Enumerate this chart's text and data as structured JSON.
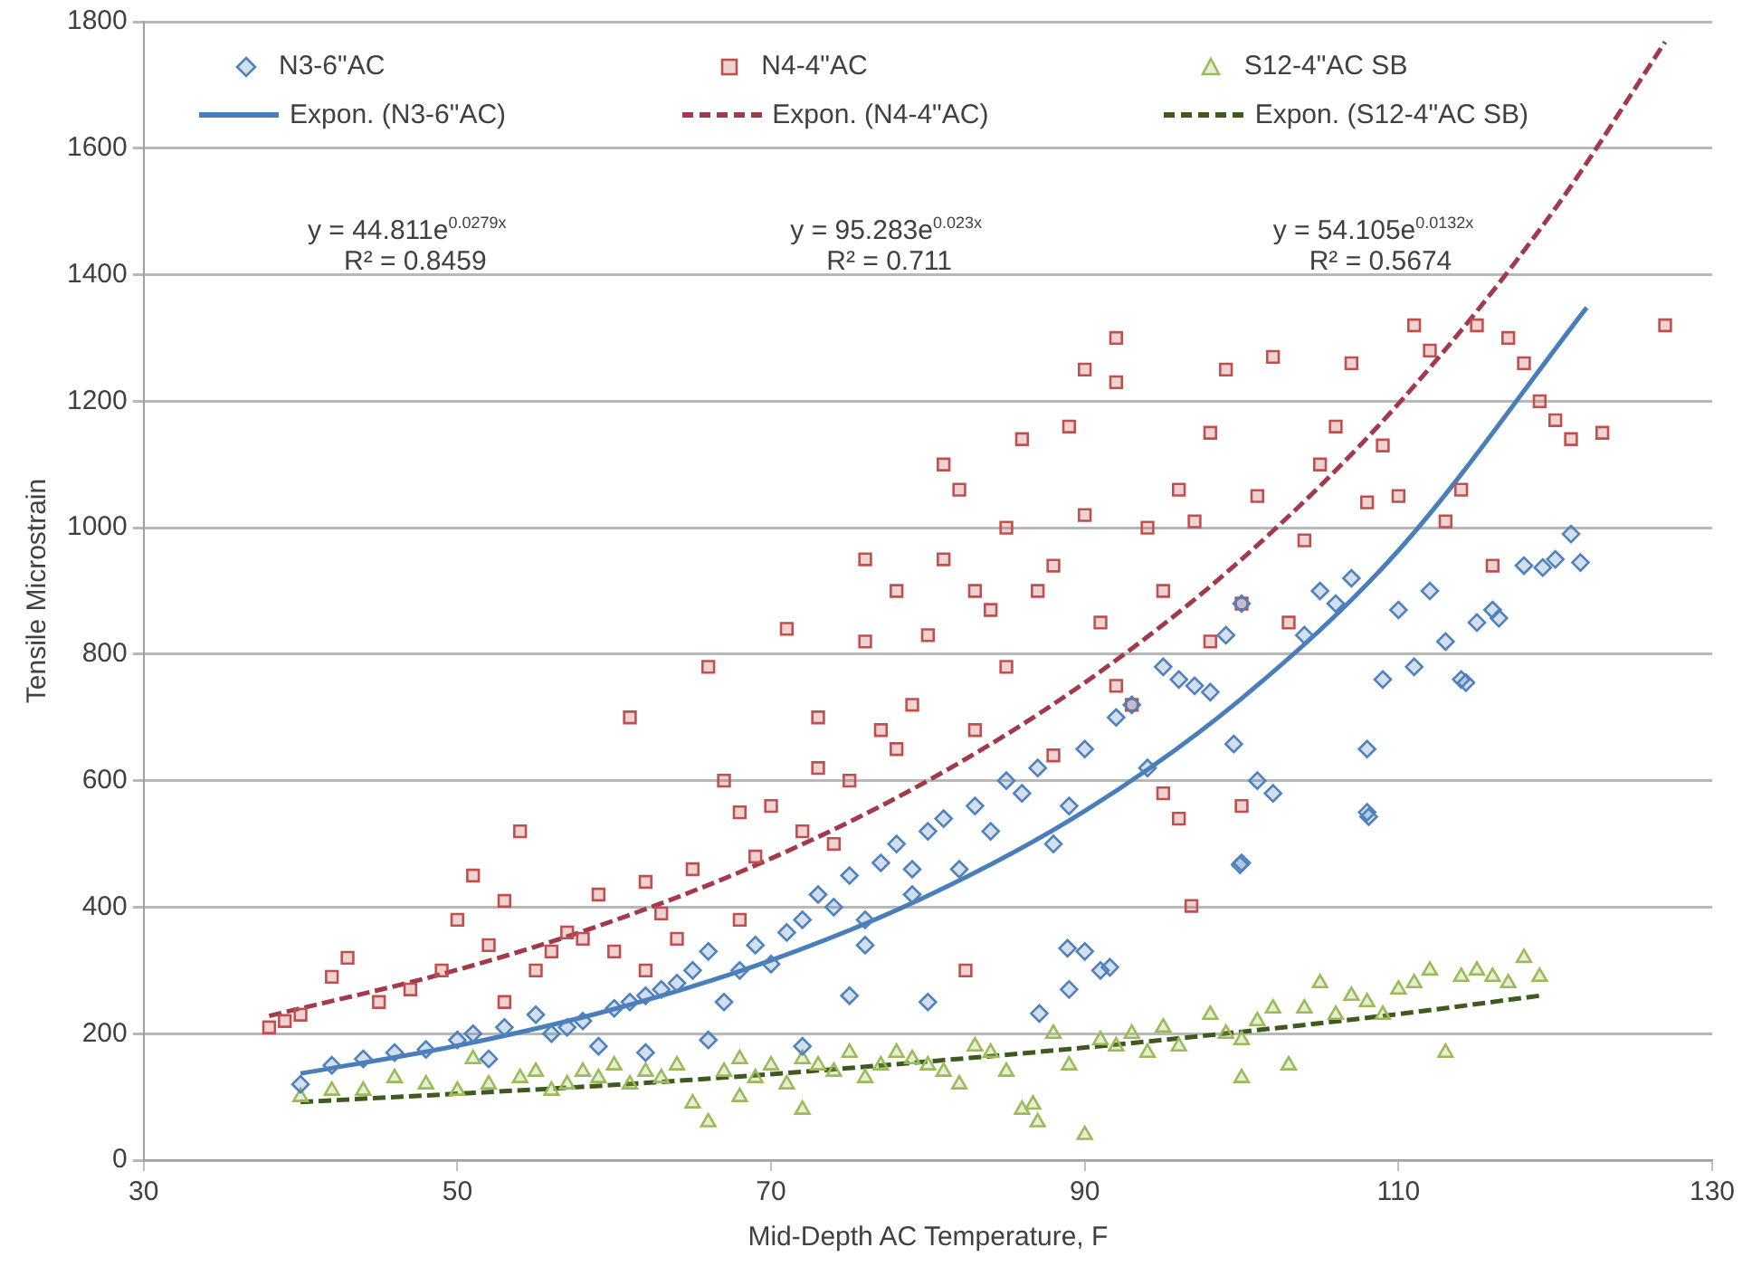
{
  "chart_data": {
    "type": "scatter",
    "xlabel": "Mid-Depth AC Temperature, F",
    "ylabel": "Tensile Microstrain",
    "xlim": [
      30,
      130
    ],
    "xticks": [
      30,
      50,
      70,
      90,
      110,
      130
    ],
    "ylim": [
      0,
      1800
    ],
    "yticks": [
      0,
      200,
      400,
      600,
      800,
      1000,
      1200,
      1400,
      1600,
      1800
    ],
    "grid": "y",
    "legend": "top",
    "annotations": [
      "y = 44.811e$^{0.0279x}$",
      "R² = 0.8459",
      "y = 95.283e$^{0.023x}$",
      "R² = 0.711",
      "y = 54.105e$^{0.0132x}$",
      "R² = 0.5674"
    ],
    "series": [
      {
        "name": "N3-6\"AC",
        "type": "scatter",
        "marker": "diamond",
        "color": "#4f81bd",
        "x": [
          40,
          42,
          44,
          46,
          48,
          50,
          51,
          52,
          53,
          55,
          56,
          57,
          58,
          59,
          60,
          61,
          62,
          63,
          64,
          65,
          66,
          67,
          68,
          69,
          70,
          71,
          72,
          73,
          74,
          75,
          76,
          77,
          78,
          79,
          80,
          81,
          82,
          83,
          84,
          85,
          86,
          87,
          88,
          89,
          90,
          90,
          91,
          89,
          92,
          93,
          94,
          95,
          96,
          97,
          98,
          99,
          100,
          100,
          101,
          102,
          104,
          105,
          106,
          107,
          108,
          108,
          109,
          110,
          111,
          112,
          113,
          114,
          115,
          116,
          118,
          120,
          121,
          79,
          76,
          72,
          75,
          66,
          62,
          99.5,
          108.1,
          99.9,
          88.9,
          91.6,
          80,
          87.1,
          119.2,
          121.6,
          114.3,
          116.4
        ],
        "values": [
          120,
          150,
          160,
          170,
          175,
          190,
          200,
          160,
          210,
          230,
          200,
          210,
          220,
          180,
          240,
          250,
          260,
          270,
          280,
          300,
          330,
          250,
          300,
          340,
          310,
          360,
          380,
          420,
          400,
          450,
          380,
          470,
          500,
          420,
          520,
          540,
          460,
          560,
          520,
          600,
          580,
          620,
          500,
          560,
          650,
          330,
          300,
          270,
          700,
          720,
          620,
          780,
          760,
          750,
          740,
          830,
          880,
          470,
          600,
          580,
          830,
          900,
          880,
          920,
          550,
          650,
          760,
          870,
          780,
          900,
          820,
          760,
          850,
          870,
          940,
          950,
          990,
          460,
          340,
          180,
          260,
          190,
          170,
          658,
          543,
          467,
          335,
          305,
          250,
          232,
          937,
          945,
          755,
          857
        ]
      },
      {
        "name": "N4-4\"AC",
        "type": "scatter",
        "marker": "square",
        "color": "#c0504d",
        "x": [
          38,
          39,
          40,
          42,
          43,
          45,
          47,
          49,
          50,
          51,
          52,
          53,
          54,
          55,
          56,
          57,
          58,
          59,
          60,
          61,
          62,
          63,
          64,
          65,
          66,
          67,
          68,
          69,
          70,
          71,
          72,
          73,
          74,
          75,
          76,
          76,
          77,
          78,
          79,
          80,
          81,
          81,
          82,
          83,
          84,
          85,
          85,
          86,
          87,
          88,
          89,
          90,
          90,
          91,
          92,
          92,
          93,
          94,
          95,
          96,
          97,
          98,
          98,
          99,
          100,
          101,
          102,
          103,
          104,
          105,
          106,
          107,
          108,
          109,
          110,
          111,
          112,
          113,
          114,
          115,
          116,
          117,
          118,
          119,
          120,
          121,
          123,
          127,
          92,
          95,
          100,
          88,
          83,
          78,
          73,
          68,
          62,
          53,
          96.8,
          82.4,
          96
        ],
        "values": [
          210,
          220,
          230,
          290,
          320,
          250,
          270,
          300,
          380,
          450,
          340,
          410,
          520,
          300,
          330,
          360,
          350,
          420,
          330,
          700,
          440,
          390,
          350,
          460,
          780,
          600,
          550,
          480,
          560,
          840,
          520,
          620,
          500,
          600,
          950,
          820,
          680,
          650,
          720,
          830,
          1100,
          950,
          1060,
          900,
          870,
          1000,
          780,
          1140,
          900,
          940,
          1160,
          1250,
          1020,
          850,
          1300,
          1230,
          720,
          1000,
          900,
          1060,
          1010,
          1150,
          820,
          1250,
          880,
          1050,
          1270,
          850,
          980,
          1100,
          1160,
          1260,
          1040,
          1130,
          1050,
          1320,
          1280,
          1010,
          1060,
          1320,
          940,
          1300,
          1260,
          1200,
          1170,
          1140,
          1150,
          1320,
          750,
          580,
          560,
          640,
          680,
          900,
          700,
          380,
          300,
          250,
          402,
          300,
          540
        ]
      },
      {
        "name": "S12-4\"AC SB",
        "type": "scatter",
        "marker": "triangle",
        "color": "#9bbb59",
        "x": [
          40,
          42,
          44,
          46,
          48,
          50,
          51,
          52,
          54,
          55,
          56,
          57,
          58,
          59,
          60,
          61,
          62,
          63,
          64,
          65,
          66,
          67,
          68,
          69,
          70,
          71,
          72,
          73,
          74,
          75,
          76,
          77,
          78,
          79,
          80,
          81,
          82,
          83,
          84,
          85,
          86,
          87,
          88,
          89,
          90,
          91,
          92,
          93,
          94,
          95,
          96,
          100,
          98,
          99,
          100,
          101,
          102,
          103,
          104,
          105,
          106,
          107,
          108,
          109,
          110,
          111,
          112,
          113,
          114,
          115,
          116,
          117,
          118,
          119,
          72,
          68,
          86.7
        ],
        "values": [
          100,
          110,
          110,
          130,
          120,
          110,
          160,
          120,
          130,
          140,
          110,
          120,
          140,
          130,
          150,
          120,
          140,
          130,
          150,
          90,
          60,
          140,
          160,
          130,
          150,
          120,
          160,
          150,
          140,
          170,
          130,
          150,
          170,
          160,
          150,
          140,
          120,
          180,
          170,
          140,
          80,
          60,
          200,
          150,
          40,
          190,
          180,
          200,
          170,
          210,
          180,
          130,
          230,
          200,
          190,
          220,
          240,
          150,
          240,
          280,
          230,
          260,
          250,
          230,
          270,
          280,
          300,
          170,
          290,
          300,
          290,
          280,
          320,
          290,
          80,
          100,
          88
        ]
      },
      {
        "name": "Expon. (N3-6\"AC)",
        "type": "line",
        "marker": "none",
        "line_style": "solid",
        "color": "#4a7ebb",
        "x": [
          40,
          50,
          60,
          70,
          80,
          90,
          100,
          110,
          122
        ],
        "values": [
          137,
          181,
          239,
          316,
          418,
          552,
          730,
          964,
          1348
        ]
      },
      {
        "name": "Expon. (N4-4\"AC)",
        "type": "line",
        "marker": "none",
        "line_style": "dashed",
        "color": "#a23a4c",
        "x": [
          38,
          50,
          60,
          70,
          80,
          90,
          100,
          110,
          120,
          127
        ],
        "values": [
          228,
          301,
          379,
          477,
          600,
          755,
          950,
          1196,
          1505,
          1768
        ]
      },
      {
        "name": "Expon. (S12-4\"AC SB)",
        "type": "line",
        "marker": "none",
        "line_style": "dashed",
        "color": "#3f5a1e",
        "x": [
          40,
          50,
          60,
          70,
          80,
          90,
          100,
          110,
          119
        ],
        "values": [
          92,
          105,
          119,
          136,
          156,
          178,
          203,
          231,
          260
        ]
      }
    ]
  }
}
